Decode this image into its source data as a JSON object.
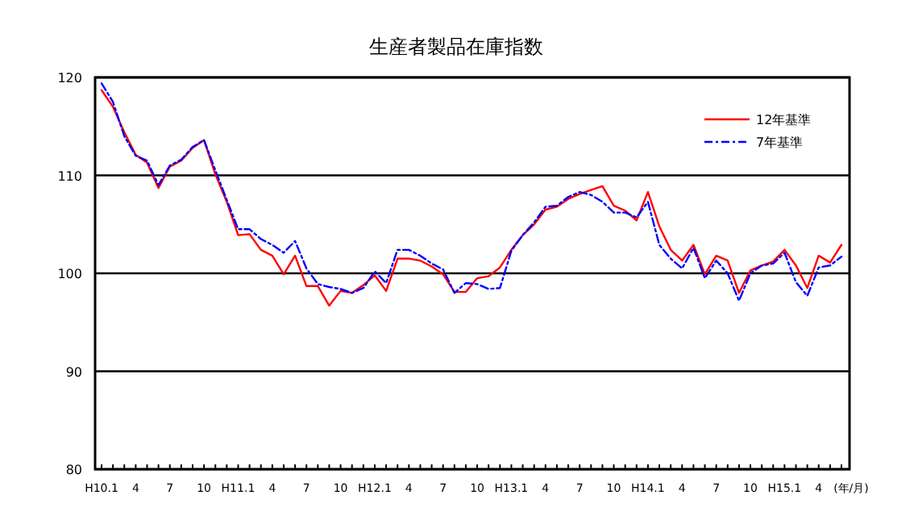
{
  "chart_data": {
    "type": "line",
    "title": "生産者製品在庫指数",
    "xlabel": "(年/月)",
    "categories": [
      "H10.1",
      null,
      null,
      "4",
      null,
      null,
      "7",
      null,
      null,
      "10",
      null,
      null,
      "H11.1",
      null,
      null,
      "4",
      null,
      null,
      "7",
      null,
      null,
      "10",
      null,
      null,
      "H12.1",
      null,
      null,
      "4",
      null,
      null,
      "7",
      null,
      null,
      "10",
      null,
      null,
      "H13.1",
      null,
      null,
      "4",
      null,
      null,
      "7",
      null,
      null,
      "10",
      null,
      null,
      "H14.1",
      null,
      null,
      "4",
      null,
      null,
      "7",
      null,
      null,
      "10",
      null,
      null,
      "H15.1",
      null,
      null,
      "4",
      null,
      null
    ],
    "series": [
      {
        "name": "12年基準",
        "color": "#ff0000",
        "line_style": "solid",
        "values": [
          118.7,
          117.0,
          114.4,
          112.1,
          111.3,
          108.7,
          110.9,
          111.5,
          112.8,
          113.6,
          110.1,
          107.3,
          103.9,
          104.0,
          102.4,
          101.8,
          99.9,
          101.8,
          98.7,
          98.7,
          96.7,
          98.2,
          98.0,
          98.8,
          99.8,
          98.2,
          101.5,
          101.5,
          101.3,
          100.7,
          99.9,
          98.1,
          98.1,
          99.5,
          99.7,
          100.6,
          102.4,
          103.9,
          105.0,
          106.5,
          106.8,
          107.6,
          108.1,
          108.5,
          108.9,
          106.9,
          106.4,
          105.4,
          108.3,
          104.8,
          102.4,
          101.3,
          102.9,
          99.9,
          101.8,
          101.3,
          98.0,
          100.3,
          100.8,
          101.2,
          102.4,
          100.8,
          98.5,
          101.8,
          101.1,
          102.9
        ]
      },
      {
        "name": "7年基準",
        "color": "#0000ff",
        "line_style": "dashdot",
        "values": [
          119.4,
          117.5,
          114.0,
          112.0,
          111.5,
          109.0,
          111.0,
          111.6,
          112.9,
          113.6,
          110.5,
          107.5,
          104.5,
          104.5,
          103.5,
          102.9,
          102.1,
          103.3,
          100.5,
          98.9,
          98.6,
          98.4,
          98.0,
          98.5,
          100.2,
          99.0,
          102.4,
          102.4,
          101.8,
          101.0,
          100.4,
          98.0,
          99.0,
          98.9,
          98.4,
          98.5,
          102.3,
          103.9,
          105.2,
          106.8,
          106.9,
          107.8,
          108.3,
          108.0,
          107.3,
          106.2,
          106.2,
          105.7,
          107.3,
          102.9,
          101.5,
          100.5,
          102.6,
          99.5,
          101.3,
          100.0,
          97.2,
          100.0,
          100.8,
          101.0,
          102.1,
          99.1,
          97.7,
          100.6,
          100.8,
          101.7
        ]
      }
    ],
    "ylim": [
      80,
      120
    ],
    "yticks": [
      80,
      90,
      100,
      110,
      120
    ],
    "grid": "y",
    "legend": "top right"
  }
}
